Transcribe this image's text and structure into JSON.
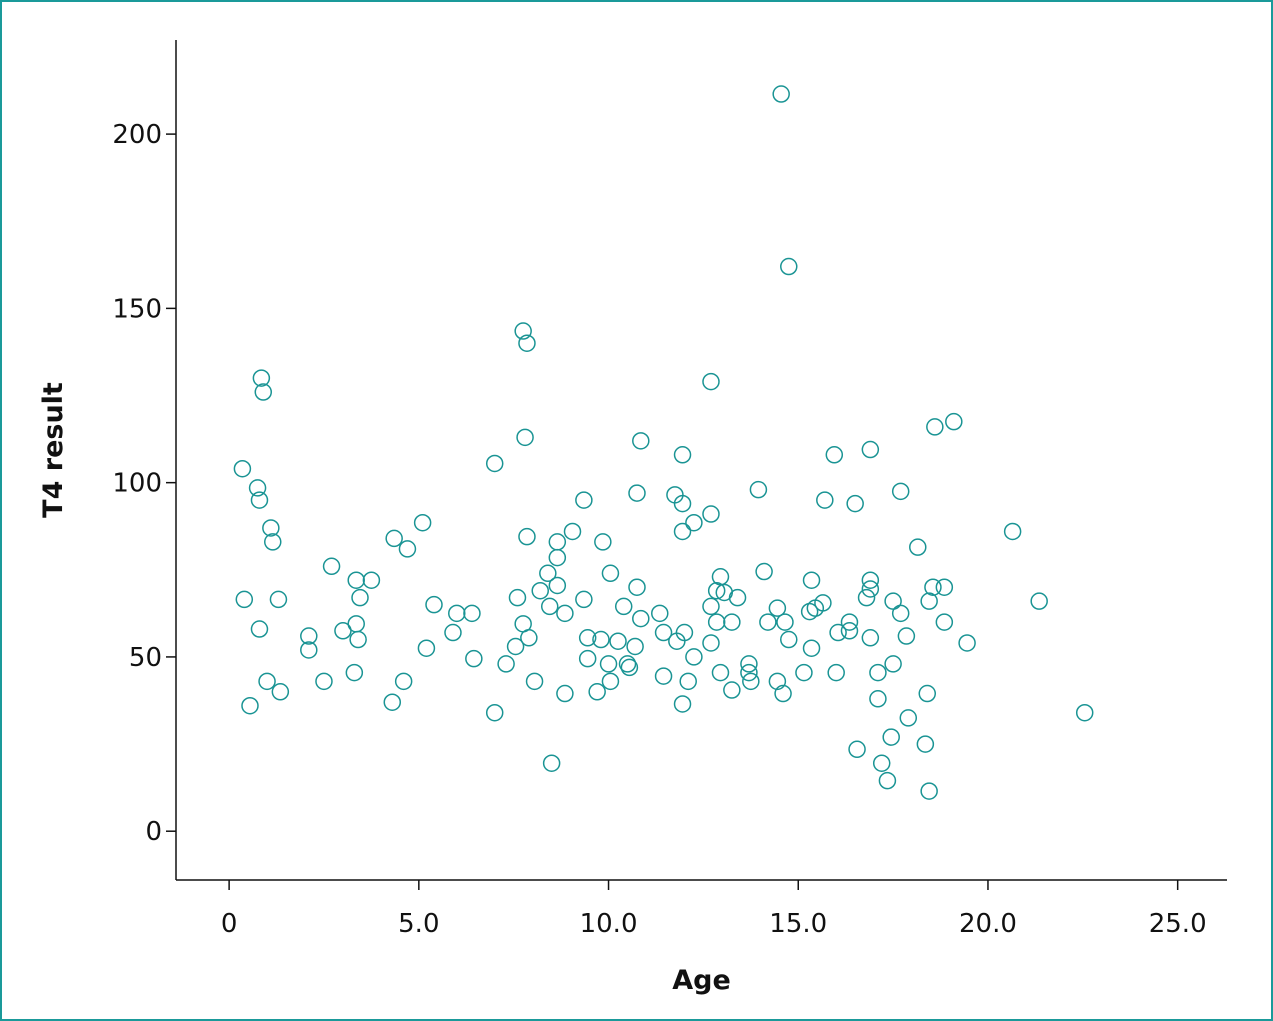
{
  "chart_data": {
    "type": "scatter",
    "title": "",
    "xlabel": "Age",
    "ylabel": "T4 result",
    "xlim": [
      -1.4,
      26.3
    ],
    "ylim": [
      -14,
      227
    ],
    "x_ticks": [
      0,
      5,
      10,
      15,
      20,
      25
    ],
    "x_tick_labels": [
      "0",
      "5.0",
      "10.0",
      "15.0",
      "20.0",
      "25.0"
    ],
    "y_ticks": [
      0,
      50,
      100,
      150,
      200
    ],
    "y_tick_labels": [
      "0",
      "50",
      "100",
      "150",
      "200"
    ],
    "grid": false,
    "legend": "none",
    "marker": "open-circle",
    "colors": {
      "point": "#1a9494",
      "axis": "#111111",
      "frame": "#1a9a9a"
    },
    "points": [
      [
        0.35,
        104
      ],
      [
        0.4,
        66.5
      ],
      [
        0.55,
        36
      ],
      [
        0.75,
        98.5
      ],
      [
        0.8,
        95
      ],
      [
        0.8,
        58
      ],
      [
        0.85,
        130
      ],
      [
        0.9,
        126
      ],
      [
        1.0,
        43
      ],
      [
        1.1,
        87
      ],
      [
        1.15,
        83
      ],
      [
        1.3,
        66.5
      ],
      [
        1.35,
        40
      ],
      [
        2.1,
        56
      ],
      [
        2.1,
        52
      ],
      [
        2.5,
        43
      ],
      [
        2.7,
        76
      ],
      [
        3.0,
        57.5
      ],
      [
        3.3,
        45.5
      ],
      [
        3.35,
        72
      ],
      [
        3.35,
        59.5
      ],
      [
        3.4,
        55
      ],
      [
        3.45,
        67
      ],
      [
        3.75,
        72
      ],
      [
        4.3,
        37
      ],
      [
        4.35,
        84
      ],
      [
        4.6,
        43
      ],
      [
        4.7,
        81
      ],
      [
        5.1,
        88.5
      ],
      [
        5.2,
        52.5
      ],
      [
        5.4,
        65
      ],
      [
        5.9,
        57
      ],
      [
        6.0,
        62.5
      ],
      [
        6.4,
        62.5
      ],
      [
        6.45,
        49.5
      ],
      [
        7.0,
        105.5
      ],
      [
        7.0,
        34
      ],
      [
        7.3,
        48
      ],
      [
        7.55,
        53
      ],
      [
        7.6,
        67
      ],
      [
        7.75,
        143.5
      ],
      [
        7.75,
        59.5
      ],
      [
        7.8,
        113
      ],
      [
        7.85,
        84.5
      ],
      [
        7.85,
        140
      ],
      [
        7.9,
        55.5
      ],
      [
        8.05,
        43
      ],
      [
        8.2,
        69
      ],
      [
        8.4,
        74
      ],
      [
        8.45,
        64.5
      ],
      [
        8.5,
        19.5
      ],
      [
        8.65,
        83
      ],
      [
        8.65,
        78.5
      ],
      [
        8.65,
        70.5
      ],
      [
        8.85,
        62.5
      ],
      [
        8.85,
        39.5
      ],
      [
        9.05,
        86
      ],
      [
        9.35,
        95
      ],
      [
        9.35,
        66.5
      ],
      [
        9.45,
        55.5
      ],
      [
        9.45,
        49.5
      ],
      [
        9.7,
        40
      ],
      [
        9.8,
        55
      ],
      [
        9.85,
        83
      ],
      [
        10.0,
        48
      ],
      [
        10.05,
        74
      ],
      [
        10.05,
        43
      ],
      [
        10.25,
        54.5
      ],
      [
        10.4,
        64.5
      ],
      [
        10.5,
        48
      ],
      [
        10.55,
        47
      ],
      [
        10.7,
        53
      ],
      [
        10.75,
        97
      ],
      [
        10.75,
        70
      ],
      [
        10.85,
        61
      ],
      [
        10.85,
        112
      ],
      [
        11.35,
        62.5
      ],
      [
        11.45,
        44.5
      ],
      [
        11.45,
        57
      ],
      [
        11.75,
        96.5
      ],
      [
        11.8,
        54.5
      ],
      [
        11.95,
        108
      ],
      [
        11.95,
        94
      ],
      [
        11.95,
        86
      ],
      [
        12.0,
        57
      ],
      [
        11.95,
        36.5
      ],
      [
        12.1,
        43
      ],
      [
        12.25,
        88.5
      ],
      [
        12.25,
        50
      ],
      [
        12.7,
        129
      ],
      [
        12.7,
        91
      ],
      [
        12.7,
        64.5
      ],
      [
        12.7,
        54
      ],
      [
        12.85,
        69
      ],
      [
        12.85,
        60
      ],
      [
        12.95,
        73
      ],
      [
        12.95,
        45.5
      ],
      [
        13.05,
        68.5
      ],
      [
        13.25,
        60
      ],
      [
        13.25,
        40.5
      ],
      [
        13.4,
        67
      ],
      [
        13.7,
        48
      ],
      [
        13.7,
        45.5
      ],
      [
        13.75,
        43
      ],
      [
        13.95,
        98
      ],
      [
        14.1,
        74.5
      ],
      [
        14.2,
        60
      ],
      [
        14.45,
        64
      ],
      [
        14.45,
        43
      ],
      [
        14.55,
        211.5
      ],
      [
        14.6,
        39.5
      ],
      [
        14.65,
        60
      ],
      [
        14.75,
        162
      ],
      [
        14.75,
        55
      ],
      [
        15.15,
        45.5
      ],
      [
        15.3,
        63
      ],
      [
        15.35,
        52.5
      ],
      [
        15.35,
        72
      ],
      [
        15.45,
        64
      ],
      [
        15.65,
        65.5
      ],
      [
        15.7,
        95
      ],
      [
        15.95,
        108
      ],
      [
        16.0,
        45.5
      ],
      [
        16.05,
        57
      ],
      [
        16.35,
        60
      ],
      [
        16.35,
        57.5
      ],
      [
        16.5,
        94
      ],
      [
        16.55,
        23.5
      ],
      [
        16.8,
        67
      ],
      [
        16.9,
        109.5
      ],
      [
        16.9,
        72
      ],
      [
        16.9,
        69.5
      ],
      [
        16.9,
        55.5
      ],
      [
        17.1,
        45.5
      ],
      [
        17.1,
        38
      ],
      [
        17.2,
        19.5
      ],
      [
        17.35,
        14.5
      ],
      [
        17.45,
        27
      ],
      [
        17.5,
        66
      ],
      [
        17.5,
        48
      ],
      [
        17.7,
        97.5
      ],
      [
        17.7,
        62.5
      ],
      [
        17.85,
        56
      ],
      [
        17.9,
        32.5
      ],
      [
        18.15,
        81.5
      ],
      [
        18.35,
        25
      ],
      [
        18.4,
        39.5
      ],
      [
        18.45,
        11.5
      ],
      [
        18.45,
        66
      ],
      [
        18.55,
        70
      ],
      [
        18.6,
        116
      ],
      [
        18.85,
        70
      ],
      [
        18.85,
        60
      ],
      [
        19.1,
        117.5
      ],
      [
        19.45,
        54
      ],
      [
        20.65,
        86
      ],
      [
        21.35,
        66
      ],
      [
        22.55,
        34
      ]
    ]
  }
}
